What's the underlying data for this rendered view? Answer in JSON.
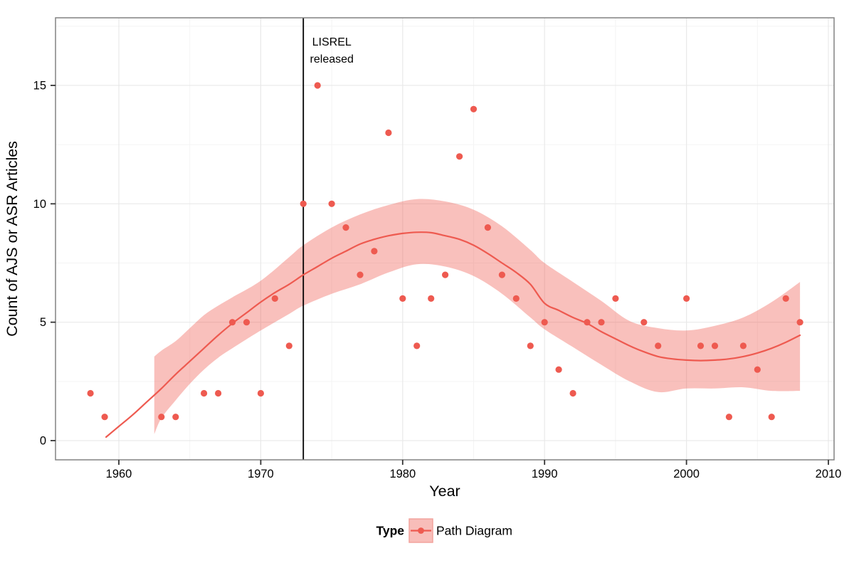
{
  "chart_data": {
    "type": "scatter",
    "title": "",
    "xlabel": "Year",
    "ylabel": "Count of AJS or ASR Articles",
    "x_ticks": [
      1960,
      1970,
      1980,
      1990,
      2000,
      2010
    ],
    "x_tick_labels": [
      "1960",
      "1970",
      "1980",
      "1990",
      "2000",
      "2010"
    ],
    "x_minor_ticks": [
      1965,
      1975,
      1985,
      1995,
      2005
    ],
    "y_ticks": [
      0,
      5,
      10,
      15
    ],
    "y_tick_labels": [
      "0",
      "5",
      "10",
      "15"
    ],
    "y_minor_ticks": [
      2.5,
      7.5,
      12.5,
      17.5
    ],
    "x_range": [
      1955.5,
      2010.4
    ],
    "y_range": [
      -0.8,
      17.85
    ],
    "grid": true,
    "legend": {
      "position": "bottom",
      "title": "Type",
      "entries": [
        {
          "label": "Path Diagram"
        }
      ]
    },
    "vline": {
      "x": 1973,
      "label_lines": [
        "LISREL",
        "released"
      ]
    },
    "series": [
      {
        "name": "Path Diagram",
        "points": [
          [
            1958,
            2
          ],
          [
            1959,
            1
          ],
          [
            1963,
            1
          ],
          [
            1964,
            1
          ],
          [
            1966,
            2
          ],
          [
            1967,
            2
          ],
          [
            1968,
            5
          ],
          [
            1969,
            5
          ],
          [
            1970,
            2
          ],
          [
            1971,
            6
          ],
          [
            1972,
            4
          ],
          [
            1973,
            10
          ],
          [
            1974,
            15
          ],
          [
            1975,
            10
          ],
          [
            1976,
            9
          ],
          [
            1977,
            7
          ],
          [
            1978,
            8
          ],
          [
            1979,
            13
          ],
          [
            1980,
            6
          ],
          [
            1981,
            4
          ],
          [
            1982,
            6
          ],
          [
            1983,
            7
          ],
          [
            1984,
            12
          ],
          [
            1985,
            14
          ],
          [
            1986,
            9
          ],
          [
            1987,
            7
          ],
          [
            1988,
            6
          ],
          [
            1989,
            4
          ],
          [
            1990,
            5
          ],
          [
            1991,
            3
          ],
          [
            1992,
            2
          ],
          [
            1993,
            5
          ],
          [
            1994,
            5
          ],
          [
            1995,
            6
          ],
          [
            1997,
            5
          ],
          [
            1998,
            4
          ],
          [
            2000,
            6
          ],
          [
            2001,
            4
          ],
          [
            2002,
            4
          ],
          [
            2003,
            1
          ],
          [
            2004,
            4
          ],
          [
            2005,
            3
          ],
          [
            2006,
            1
          ],
          [
            2007,
            6
          ],
          [
            2008,
            5
          ]
        ]
      }
    ],
    "smooth_line": [
      [
        1959.1,
        0.15
      ],
      [
        1960,
        0.6
      ],
      [
        1961,
        1.1
      ],
      [
        1962,
        1.65
      ],
      [
        1963,
        2.2
      ],
      [
        1964,
        2.8
      ],
      [
        1965,
        3.35
      ],
      [
        1966,
        3.9
      ],
      [
        1967,
        4.45
      ],
      [
        1968,
        4.95
      ],
      [
        1969,
        5.4
      ],
      [
        1970,
        5.85
      ],
      [
        1971,
        6.25
      ],
      [
        1972,
        6.6
      ],
      [
        1973,
        7.0
      ],
      [
        1974,
        7.35
      ],
      [
        1975,
        7.7
      ],
      [
        1976,
        8.0
      ],
      [
        1977,
        8.3
      ],
      [
        1978,
        8.5
      ],
      [
        1979,
        8.65
      ],
      [
        1980,
        8.75
      ],
      [
        1981,
        8.8
      ],
      [
        1982,
        8.78
      ],
      [
        1983,
        8.65
      ],
      [
        1984,
        8.5
      ],
      [
        1985,
        8.25
      ],
      [
        1986,
        7.9
      ],
      [
        1987,
        7.5
      ],
      [
        1988,
        7.1
      ],
      [
        1989,
        6.6
      ],
      [
        1990,
        5.8
      ],
      [
        1991,
        5.5
      ],
      [
        1992,
        5.2
      ],
      [
        1993,
        4.95
      ],
      [
        1994,
        4.6
      ],
      [
        1995,
        4.3
      ],
      [
        1996,
        4.0
      ],
      [
        1997,
        3.75
      ],
      [
        1998,
        3.55
      ],
      [
        1999,
        3.45
      ],
      [
        2000,
        3.4
      ],
      [
        2001,
        3.38
      ],
      [
        2002,
        3.4
      ],
      [
        2003,
        3.45
      ],
      [
        2004,
        3.55
      ],
      [
        2005,
        3.7
      ],
      [
        2006,
        3.9
      ],
      [
        2007,
        4.15
      ],
      [
        2008,
        4.45
      ]
    ],
    "ribbon": {
      "upper": [
        [
          1962.5,
          3.55
        ],
        [
          1963,
          3.8
        ],
        [
          1964,
          4.2
        ],
        [
          1965,
          4.75
        ],
        [
          1966,
          5.3
        ],
        [
          1967,
          5.7
        ],
        [
          1968,
          6.05
        ],
        [
          1970,
          6.75
        ],
        [
          1972,
          7.75
        ],
        [
          1973,
          8.25
        ],
        [
          1975,
          9.0
        ],
        [
          1977,
          9.55
        ],
        [
          1979,
          9.95
        ],
        [
          1981,
          10.2
        ],
        [
          1983,
          10.1
        ],
        [
          1985,
          9.75
        ],
        [
          1987,
          9.05
        ],
        [
          1989,
          8.05
        ],
        [
          1990,
          7.5
        ],
        [
          1992,
          6.7
        ],
        [
          1994,
          5.9
        ],
        [
          1996,
          5.05
        ],
        [
          1998,
          4.75
        ],
        [
          2000,
          4.65
        ],
        [
          2002,
          4.85
        ],
        [
          2004,
          5.2
        ],
        [
          2006,
          5.85
        ],
        [
          2008,
          6.7
        ]
      ],
      "lower": [
        [
          1962.5,
          0.27
        ],
        [
          1963,
          0.95
        ],
        [
          1964,
          1.7
        ],
        [
          1965,
          2.4
        ],
        [
          1966,
          3.0
        ],
        [
          1967,
          3.5
        ],
        [
          1968,
          3.9
        ],
        [
          1970,
          4.65
        ],
        [
          1972,
          5.35
        ],
        [
          1973,
          5.7
        ],
        [
          1975,
          6.2
        ],
        [
          1977,
          6.6
        ],
        [
          1979,
          7.1
        ],
        [
          1981,
          7.45
        ],
        [
          1983,
          7.35
        ],
        [
          1985,
          6.95
        ],
        [
          1987,
          6.2
        ],
        [
          1989,
          5.2
        ],
        [
          1990,
          4.7
        ],
        [
          1992,
          3.95
        ],
        [
          1994,
          3.2
        ],
        [
          1996,
          2.5
        ],
        [
          1998,
          2.05
        ],
        [
          2000,
          2.2
        ],
        [
          2002,
          2.2
        ],
        [
          2004,
          2.25
        ],
        [
          2006,
          2.1
        ],
        [
          2008,
          2.1
        ]
      ]
    },
    "colors": {
      "point": "#EE5A50",
      "smooth_line": "#EE5A50",
      "ribbon_fill": "rgba(238,90,80,0.38)",
      "legend_key_fill": "#F8BDB9",
      "legend_key_border": "#F2A49D",
      "vline": "#000000",
      "grid_major": "#E9E9E9",
      "grid_minor": "#F4F4F4",
      "panel_border": "#828282",
      "tick": "#333333"
    }
  }
}
